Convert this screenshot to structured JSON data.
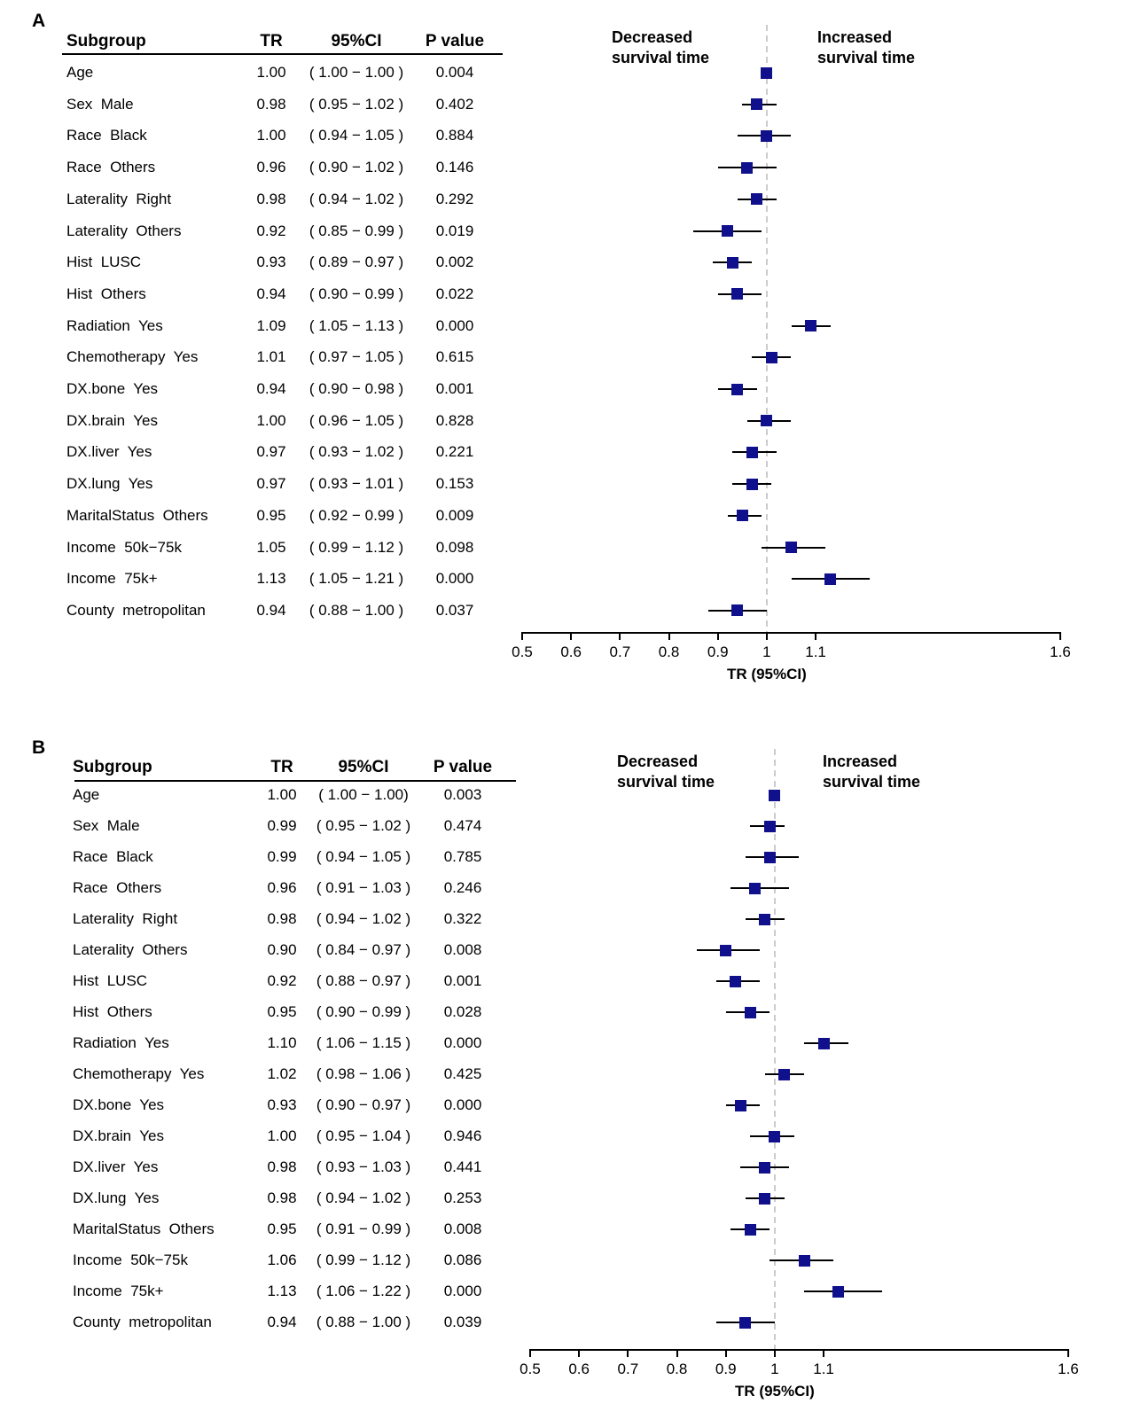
{
  "figure_type": "two-panel forest plot",
  "colors": {
    "marker": "#10108C",
    "whisker": "#000000",
    "reference_line": "#CCCCCC",
    "axis": "#000000",
    "text": "#000000"
  },
  "chart_data": [
    {
      "type": "forest",
      "panel_label": "A",
      "table_headers": [
        "Subgroup",
        "TR",
        "95%CI",
        "P value"
      ],
      "annotations": {
        "left": [
          "Decreased",
          "survival time"
        ],
        "right": [
          "Increased",
          "survival time"
        ]
      },
      "axis": {
        "label": "TR (95%CI)",
        "ticks": [
          "0.5",
          "0.6",
          "0.7",
          "0.8",
          "0.9",
          "1",
          "1.1",
          "1.6"
        ],
        "range": [
          0.5,
          1.6
        ],
        "reference": 1
      },
      "rows": [
        {
          "subgroup": "Age",
          "tr": "1.00",
          "ci": "( 1.00 − 1.00 )",
          "p": "0.004",
          "est": 1.0,
          "lo": 1.0,
          "hi": 1.0
        },
        {
          "subgroup": "Sex  Male",
          "tr": "0.98",
          "ci": "( 0.95 − 1.02 )",
          "p": "0.402",
          "est": 0.98,
          "lo": 0.95,
          "hi": 1.02
        },
        {
          "subgroup": "Race  Black",
          "tr": "1.00",
          "ci": "( 0.94 − 1.05 )",
          "p": "0.884",
          "est": 1.0,
          "lo": 0.94,
          "hi": 1.05
        },
        {
          "subgroup": "Race  Others",
          "tr": "0.96",
          "ci": "( 0.90 − 1.02 )",
          "p": "0.146",
          "est": 0.96,
          "lo": 0.9,
          "hi": 1.02
        },
        {
          "subgroup": "Laterality  Right",
          "tr": "0.98",
          "ci": "( 0.94 − 1.02 )",
          "p": "0.292",
          "est": 0.98,
          "lo": 0.94,
          "hi": 1.02
        },
        {
          "subgroup": "Laterality  Others",
          "tr": "0.92",
          "ci": "( 0.85 − 0.99 )",
          "p": "0.019",
          "est": 0.92,
          "lo": 0.85,
          "hi": 0.99
        },
        {
          "subgroup": "Hist  LUSC",
          "tr": "0.93",
          "ci": "( 0.89 − 0.97 )",
          "p": "0.002",
          "est": 0.93,
          "lo": 0.89,
          "hi": 0.97
        },
        {
          "subgroup": "Hist  Others",
          "tr": "0.94",
          "ci": "( 0.90 − 0.99 )",
          "p": "0.022",
          "est": 0.94,
          "lo": 0.9,
          "hi": 0.99
        },
        {
          "subgroup": "Radiation  Yes",
          "tr": "1.09",
          "ci": "( 1.05 − 1.13 )",
          "p": "0.000",
          "est": 1.09,
          "lo": 1.05,
          "hi": 1.13
        },
        {
          "subgroup": "Chemotherapy  Yes",
          "tr": "1.01",
          "ci": "( 0.97 − 1.05 )",
          "p": "0.615",
          "est": 1.01,
          "lo": 0.97,
          "hi": 1.05
        },
        {
          "subgroup": "DX.bone  Yes",
          "tr": "0.94",
          "ci": "( 0.90 − 0.98 )",
          "p": "0.001",
          "est": 0.94,
          "lo": 0.9,
          "hi": 0.98
        },
        {
          "subgroup": "DX.brain  Yes",
          "tr": "1.00",
          "ci": "( 0.96 − 1.05 )",
          "p": "0.828",
          "est": 1.0,
          "lo": 0.96,
          "hi": 1.05
        },
        {
          "subgroup": "DX.liver  Yes",
          "tr": "0.97",
          "ci": "( 0.93 − 1.02 )",
          "p": "0.221",
          "est": 0.97,
          "lo": 0.93,
          "hi": 1.02
        },
        {
          "subgroup": "DX.lung  Yes",
          "tr": "0.97",
          "ci": "( 0.93 − 1.01 )",
          "p": "0.153",
          "est": 0.97,
          "lo": 0.93,
          "hi": 1.01
        },
        {
          "subgroup": "MaritalStatus  Others",
          "tr": "0.95",
          "ci": "( 0.92 − 0.99 )",
          "p": "0.009",
          "est": 0.95,
          "lo": 0.92,
          "hi": 0.99
        },
        {
          "subgroup": "Income  50k−75k",
          "tr": "1.05",
          "ci": "( 0.99 − 1.12 )",
          "p": "0.098",
          "est": 1.05,
          "lo": 0.99,
          "hi": 1.12
        },
        {
          "subgroup": "Income  75k+",
          "tr": "1.13",
          "ci": "( 1.05 − 1.21 )",
          "p": "0.000",
          "est": 1.13,
          "lo": 1.05,
          "hi": 1.21
        },
        {
          "subgroup": "County  metropolitan",
          "tr": "0.94",
          "ci": "( 0.88 − 1.00 )",
          "p": "0.037",
          "est": 0.94,
          "lo": 0.88,
          "hi": 1.0
        }
      ]
    },
    {
      "type": "forest",
      "panel_label": "B",
      "table_headers": [
        "Subgroup",
        "TR",
        "95%CI",
        "P value"
      ],
      "annotations": {
        "left": [
          "Decreased",
          "survival time"
        ],
        "right": [
          "Increased",
          "survival time"
        ]
      },
      "axis": {
        "label": "TR (95%CI)",
        "ticks": [
          "0.5",
          "0.6",
          "0.7",
          "0.8",
          "0.9",
          "1",
          "1.1",
          "1.6"
        ],
        "range": [
          0.5,
          1.6
        ],
        "reference": 1
      },
      "rows": [
        {
          "subgroup": "Age",
          "tr": "1.00",
          "ci": "( 1.00 − 1.00)",
          "p": "0.003",
          "est": 1.0,
          "lo": 1.0,
          "hi": 1.0
        },
        {
          "subgroup": "Sex  Male",
          "tr": "0.99",
          "ci": "( 0.95 − 1.02 )",
          "p": "0.474",
          "est": 0.99,
          "lo": 0.95,
          "hi": 1.02
        },
        {
          "subgroup": "Race  Black",
          "tr": "0.99",
          "ci": "( 0.94 − 1.05 )",
          "p": "0.785",
          "est": 0.99,
          "lo": 0.94,
          "hi": 1.05
        },
        {
          "subgroup": "Race  Others",
          "tr": "0.96",
          "ci": "( 0.91 − 1.03 )",
          "p": "0.246",
          "est": 0.96,
          "lo": 0.91,
          "hi": 1.03
        },
        {
          "subgroup": "Laterality  Right",
          "tr": "0.98",
          "ci": "( 0.94 − 1.02 )",
          "p": "0.322",
          "est": 0.98,
          "lo": 0.94,
          "hi": 1.02
        },
        {
          "subgroup": "Laterality  Others",
          "tr": "0.90",
          "ci": "( 0.84 − 0.97 )",
          "p": "0.008",
          "est": 0.9,
          "lo": 0.84,
          "hi": 0.97
        },
        {
          "subgroup": "Hist  LUSC",
          "tr": "0.92",
          "ci": "( 0.88 − 0.97 )",
          "p": "0.001",
          "est": 0.92,
          "lo": 0.88,
          "hi": 0.97
        },
        {
          "subgroup": "Hist  Others",
          "tr": "0.95",
          "ci": "( 0.90 − 0.99 )",
          "p": "0.028",
          "est": 0.95,
          "lo": 0.9,
          "hi": 0.99
        },
        {
          "subgroup": "Radiation  Yes",
          "tr": "1.10",
          "ci": "( 1.06 − 1.15 )",
          "p": "0.000",
          "est": 1.1,
          "lo": 1.06,
          "hi": 1.15
        },
        {
          "subgroup": "Chemotherapy  Yes",
          "tr": "1.02",
          "ci": "( 0.98 − 1.06 )",
          "p": "0.425",
          "est": 1.02,
          "lo": 0.98,
          "hi": 1.06
        },
        {
          "subgroup": "DX.bone  Yes",
          "tr": "0.93",
          "ci": "( 0.90 − 0.97 )",
          "p": "0.000",
          "est": 0.93,
          "lo": 0.9,
          "hi": 0.97
        },
        {
          "subgroup": "DX.brain  Yes",
          "tr": "1.00",
          "ci": "( 0.95 − 1.04 )",
          "p": "0.946",
          "est": 1.0,
          "lo": 0.95,
          "hi": 1.04
        },
        {
          "subgroup": "DX.liver  Yes",
          "tr": "0.98",
          "ci": "( 0.93 − 1.03 )",
          "p": "0.441",
          "est": 0.98,
          "lo": 0.93,
          "hi": 1.03
        },
        {
          "subgroup": "DX.lung  Yes",
          "tr": "0.98",
          "ci": "( 0.94 − 1.02 )",
          "p": "0.253",
          "est": 0.98,
          "lo": 0.94,
          "hi": 1.02
        },
        {
          "subgroup": "MaritalStatus  Others",
          "tr": "0.95",
          "ci": "( 0.91 − 0.99 )",
          "p": "0.008",
          "est": 0.95,
          "lo": 0.91,
          "hi": 0.99
        },
        {
          "subgroup": "Income  50k−75k",
          "tr": "1.06",
          "ci": "( 0.99 − 1.12 )",
          "p": "0.086",
          "est": 1.06,
          "lo": 0.99,
          "hi": 1.12
        },
        {
          "subgroup": "Income  75k+",
          "tr": "1.13",
          "ci": "( 1.06 − 1.22 )",
          "p": "0.000",
          "est": 1.13,
          "lo": 1.06,
          "hi": 1.22
        },
        {
          "subgroup": "County  metropolitan",
          "tr": "0.94",
          "ci": "( 0.88 − 1.00 )",
          "p": "0.039",
          "est": 0.94,
          "lo": 0.88,
          "hi": 1.0
        }
      ]
    }
  ]
}
